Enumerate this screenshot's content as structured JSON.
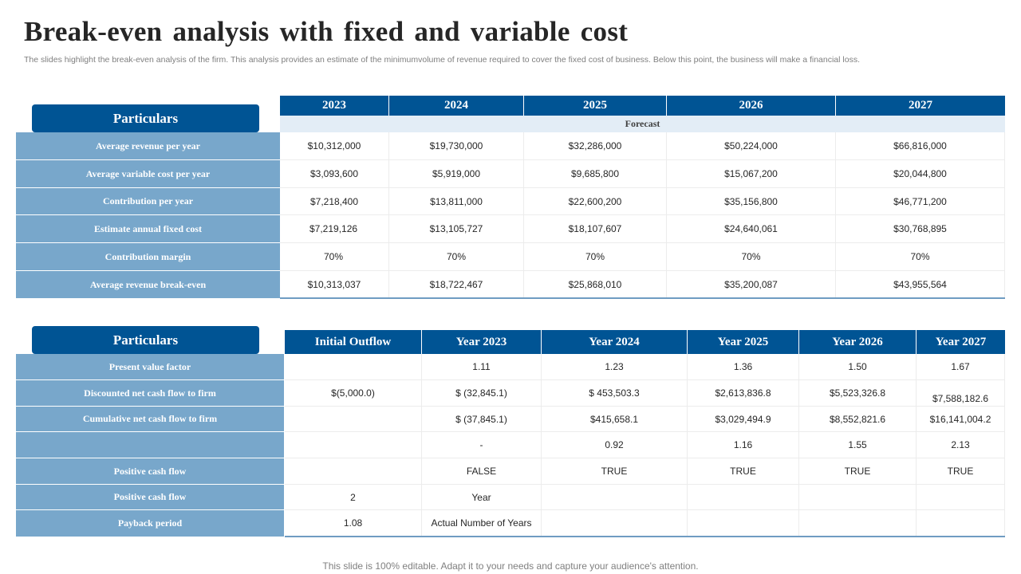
{
  "title": "Break-even analysis with fixed and variable cost",
  "subtitle": "The slides highlight the break-even analysis of the firm. This analysis provides an estimate of the minimumvolume of revenue required to cover the fixed cost of business. Below this point, the business will make a financial loss.",
  "table1": {
    "particulars_label": "Particulars",
    "years": [
      "2023",
      "2024",
      "2025",
      "2026",
      "2027"
    ],
    "forecast_label": "Forecast",
    "rows": [
      {
        "label": "Average  revenue  per year",
        "values": [
          "$10,312,000",
          "$19,730,000",
          "$32,286,000",
          "$50,224,000",
          "$66,816,000"
        ]
      },
      {
        "label": "Average  variable  cost per year",
        "values": [
          "$3,093,600",
          "$5,919,000",
          "$9,685,800",
          "$15,067,200",
          "$20,044,800"
        ]
      },
      {
        "label": "Contribution  per year",
        "values": [
          "$7,218,400",
          "$13,811,000",
          "$22,600,200",
          "$35,156,800",
          "$46,771,200"
        ]
      },
      {
        "label": "Estimate  annual  fixed  cost",
        "values": [
          "$7,219,126",
          "$13,105,727",
          "$18,107,607",
          "$24,640,061",
          "$30,768,895"
        ]
      },
      {
        "label": "Contribution  margin",
        "values": [
          "70%",
          "70%",
          "70%",
          "70%",
          "70%"
        ]
      },
      {
        "label": "Average  revenue  break-even",
        "values": [
          "$10,313,037",
          "$18,722,467",
          "$25,868,010",
          "$35,200,087",
          "$43,955,564"
        ]
      }
    ]
  },
  "table2": {
    "particulars_label": "Particulars",
    "headers": [
      "Initial  Outflow",
      "Year  2023",
      "Year  2024",
      "Year  2025",
      "Year  2026",
      "Year  2027"
    ],
    "rows": [
      {
        "label": "Present value  factor",
        "values": [
          "",
          "1.11",
          "1.23",
          "1.36",
          "1.50",
          "1.67"
        ]
      },
      {
        "label": "Discounted  net  cash flow  to  firm",
        "values": [
          "$(5,000.0)",
          "$ (32,845.1)",
          "$ 453,503.3",
          "$2,613,836.8",
          "$5,523,326.8",
          "$7,588,182.6"
        ]
      },
      {
        "label": "Cumulative  net  cash flow  to  firm",
        "values": [
          "",
          "$ (37,845.1)",
          "$415,658.1",
          "$3,029,494.9",
          "$8,552,821.6",
          "$16,141,004.2"
        ]
      },
      {
        "label": "",
        "values": [
          "",
          "-",
          "0.92",
          "1.16",
          "1.55",
          "2.13"
        ]
      },
      {
        "label": "Positive  cash flow",
        "values": [
          "",
          "FALSE",
          "TRUE",
          "TRUE",
          "TRUE",
          "TRUE"
        ]
      },
      {
        "label": "Positive  cash flow",
        "values": [
          "2",
          "Year",
          "",
          "",
          "",
          ""
        ]
      },
      {
        "label": "Payback  period",
        "values": [
          "1.08",
          "Actual Number of Years",
          "",
          "",
          "",
          ""
        ]
      }
    ]
  },
  "footer": "This slide is 100% editable. Adapt it to your needs and capture your audience's attention."
}
